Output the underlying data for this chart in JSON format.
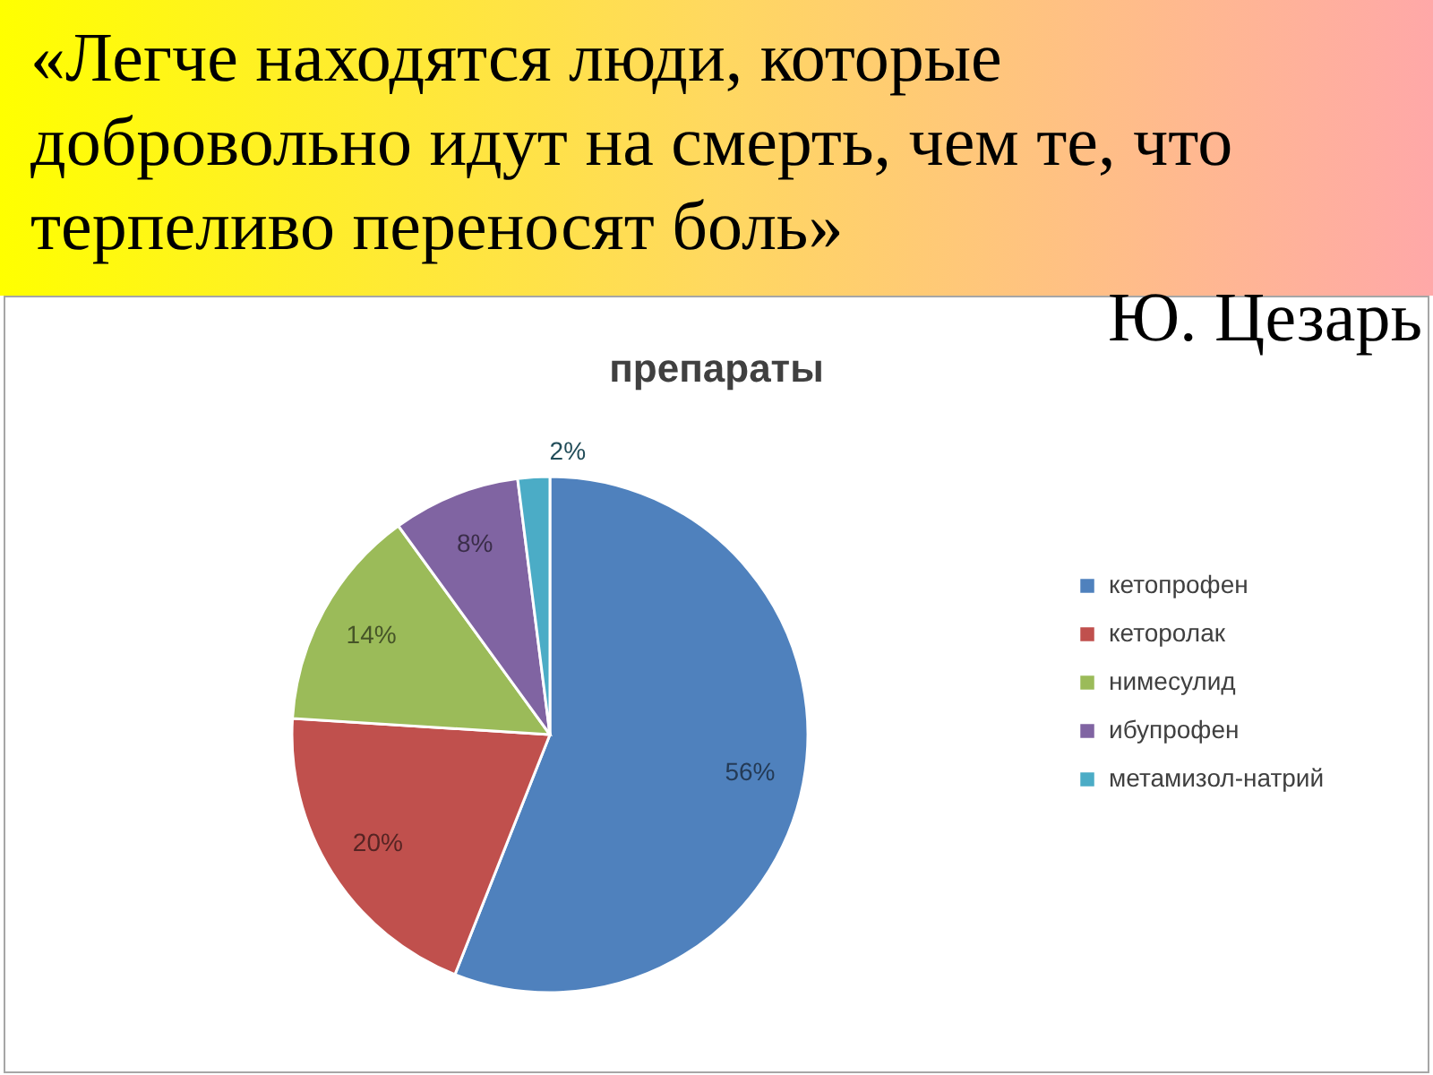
{
  "chart_data": {
    "type": "pie",
    "title": "препараты",
    "categories": [
      "кетопрофен",
      "кеторолак",
      "нимесулид",
      "ибупрофен",
      "метамизол-натрий"
    ],
    "values": [
      56,
      20,
      14,
      8,
      2
    ],
    "colors": [
      "#4f81bd",
      "#c0504d",
      "#9bbb59",
      "#8064a2",
      "#4bacc6"
    ],
    "value_labels": [
      "56%",
      "20%",
      "14%",
      "8%",
      "2%"
    ],
    "legend": "right",
    "annotations": [
      "«Легче находятся люди, которые добровольно идут на смерть, чем те, что терпеливо переносят боль»",
      "Ю. Цезарь"
    ]
  }
}
